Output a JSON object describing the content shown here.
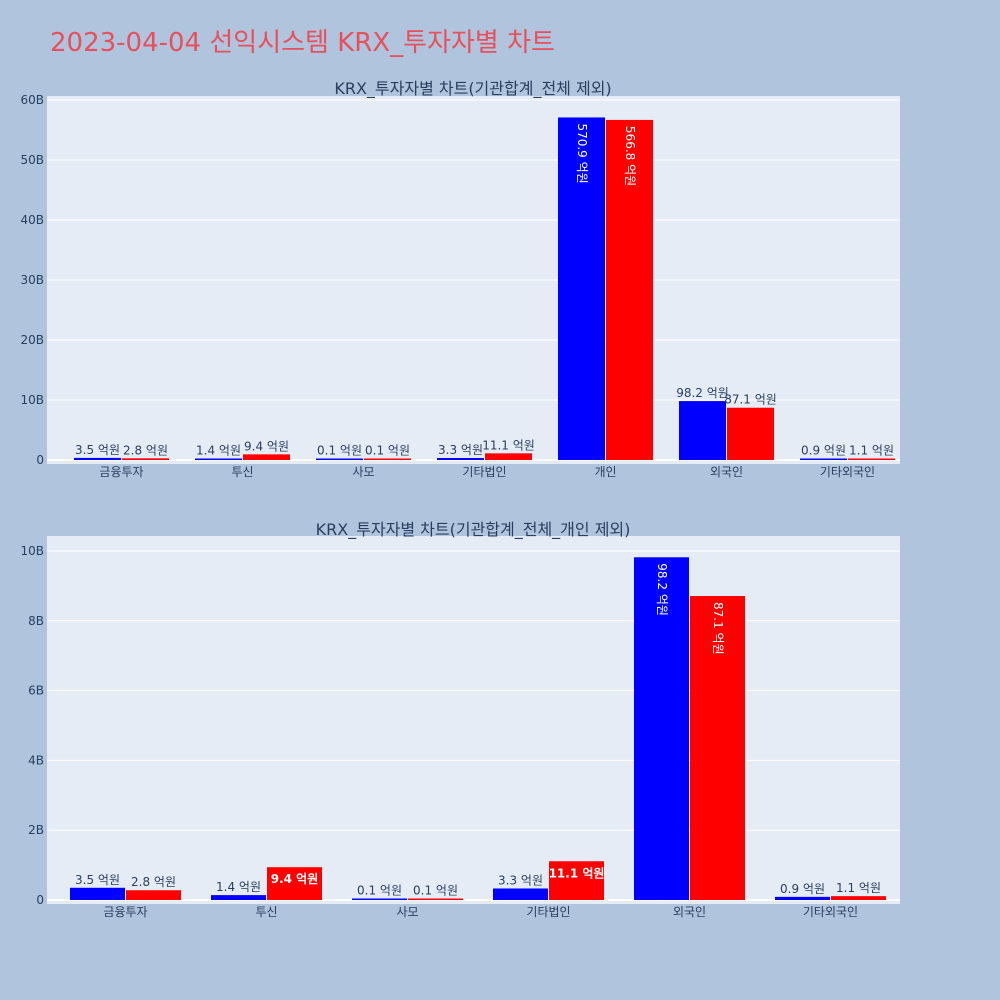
{
  "page": {
    "title": "2023-04-04 선익시스템 KRX_투자자별 차트",
    "background": "#b0c4de",
    "title_color": "#e8505b"
  },
  "chart_data": [
    {
      "type": "bar",
      "title": "KRX_투자자별 차트(기관합계_전체 제외)",
      "categories": [
        "금융투자",
        "투신",
        "사모",
        "기타법인",
        "개인",
        "외국인",
        "기타외국인"
      ],
      "series": [
        {
          "color": "#0000ff",
          "values": [
            350000000,
            140000000,
            10000000,
            330000000,
            57090000000,
            9820000000,
            90000000
          ],
          "labels": [
            "3.5 억원",
            "1.4 억원",
            "0.1 억원",
            "3.3 억원",
            "570.9 억원",
            "98.2 억원",
            "0.9 억원"
          ]
        },
        {
          "color": "#ff0000",
          "values": [
            280000000,
            940000000,
            10000000,
            1110000000,
            56680000000,
            8710000000,
            110000000
          ],
          "labels": [
            "2.8 억원",
            "9.4 억원",
            "0.1 억원",
            "11.1 억원",
            "566.8 억원",
            "87.1 억원",
            "1.1 억원"
          ]
        }
      ],
      "ylim": [
        0,
        60000000000
      ],
      "yticks": [
        0,
        10000000000,
        20000000000,
        30000000000,
        40000000000,
        50000000000,
        60000000000
      ],
      "ytick_labels": [
        "0",
        "10B",
        "20B",
        "30B",
        "40B",
        "50B",
        "60B"
      ],
      "grid": true
    },
    {
      "type": "bar",
      "title": "KRX_투자자별 차트(기관합계_전체_개인 제외)",
      "categories": [
        "금융투자",
        "투신",
        "사모",
        "기타법인",
        "외국인",
        "기타외국인"
      ],
      "series": [
        {
          "color": "#0000ff",
          "values": [
            350000000,
            140000000,
            10000000,
            330000000,
            9820000000,
            90000000
          ],
          "labels": [
            "3.5 억원",
            "1.4 억원",
            "0.1 억원",
            "3.3 억원",
            "98.2 억원",
            "0.9 억원"
          ]
        },
        {
          "color": "#ff0000",
          "values": [
            280000000,
            940000000,
            10000000,
            1110000000,
            8710000000,
            110000000
          ],
          "labels": [
            "2.8 억원",
            "9.4 억원",
            "0.1 억원",
            "11.1 억원",
            "87.1 억원",
            "1.1 억원"
          ]
        }
      ],
      "ylim": [
        0,
        10500000000
      ],
      "yticks": [
        0,
        2000000000,
        4000000000,
        6000000000,
        8000000000,
        10000000000
      ],
      "ytick_labels": [
        "0",
        "2B",
        "4B",
        "6B",
        "8B",
        "10B"
      ],
      "grid": true
    }
  ]
}
